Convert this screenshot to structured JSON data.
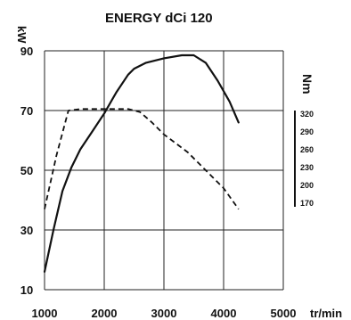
{
  "chart_data": {
    "type": "line",
    "title": "ENERGY dCi 120",
    "xlabel": "tr/min",
    "ylabel_left": "kW",
    "ylabel_right": "Nm",
    "x_ticks": [
      "1000",
      "2000",
      "3000",
      "4000",
      "5000"
    ],
    "y_left_ticks": [
      "10",
      "30",
      "50",
      "70",
      "90"
    ],
    "y_right_ticks": [
      "320",
      "290",
      "260",
      "230",
      "200",
      "170"
    ],
    "xlim": [
      1000,
      5000
    ],
    "ylim_left": [
      10,
      90
    ],
    "ylim_right": [
      170,
      320
    ],
    "grid": true,
    "series": [
      {
        "style": "solid",
        "axis": "left",
        "x": [
          1000,
          1150,
          1300,
          1450,
          1600,
          1800,
          2000,
          2200,
          2400,
          2500,
          2700,
          3000,
          3300,
          3500,
          3700,
          3900,
          4100,
          4250
        ],
        "y": [
          16,
          30,
          43,
          51,
          57,
          63,
          69,
          76,
          82,
          84,
          86,
          87.5,
          88.5,
          88.5,
          86,
          80,
          73,
          66
        ]
      },
      {
        "style": "dashed",
        "axis": "left",
        "x": [
          1000,
          1200,
          1400,
          1600,
          2000,
          2400,
          2600,
          2800,
          3000,
          3200,
          3400,
          3600,
          3800,
          4000,
          4250
        ],
        "y": [
          37,
          55,
          70,
          70.5,
          70.5,
          70.5,
          69.5,
          66,
          62,
          59,
          56,
          52,
          48,
          44,
          37
        ]
      }
    ]
  }
}
